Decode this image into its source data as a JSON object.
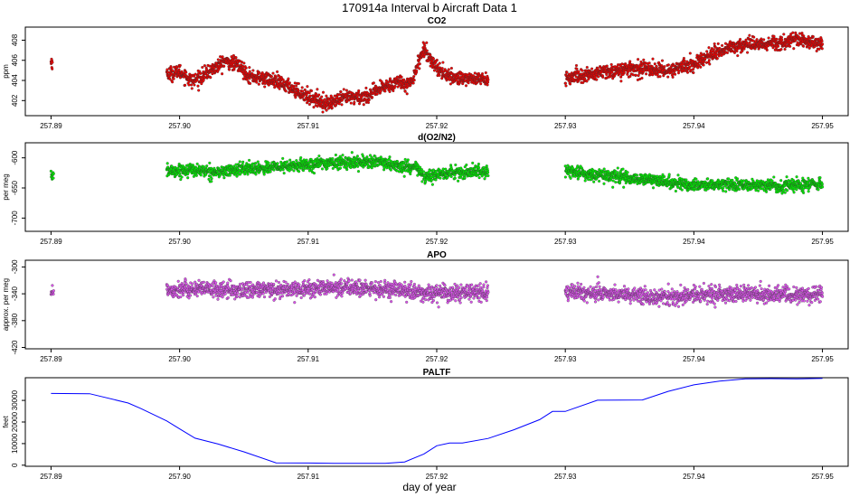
{
  "chart_data": {
    "title": "170914a   Interval b Aircraft Data 1",
    "xlabel": "day of year",
    "x_ticks": [
      "257.89",
      "257.90",
      "257.91",
      "257.92",
      "257.93",
      "257.94",
      "257.95"
    ],
    "xlim": [
      257.888,
      257.952
    ],
    "panels": [
      {
        "type": "scatter",
        "title": "CO2",
        "ylabel": "ppm",
        "ylim": [
          400.5,
          409.3
        ],
        "y_ticks": [
          "402",
          "404",
          "406",
          "408"
        ],
        "color": "#ee0000",
        "segments": [
          {
            "x": [
              257.89,
              257.8901
            ],
            "y": [
              405.8,
              405.9
            ]
          },
          {
            "x": [
              257.899,
              257.9,
              257.901,
              257.902,
              257.9035,
              257.9045,
              257.9055,
              257.907,
              257.9085,
              257.91,
              257.9115,
              257.913,
              257.9145,
              257.916,
              257.917,
              257.918,
              257.9185,
              257.919,
              257.9195,
              257.92,
              257.921,
              257.9225,
              257.924
            ],
            "y": [
              404.6,
              404.9,
              403.9,
              404.6,
              405.9,
              405.6,
              404.4,
              404.1,
              403.4,
              402.4,
              401.7,
              402.3,
              402.4,
              403.4,
              403.9,
              403.6,
              405.6,
              407.1,
              406.2,
              405.3,
              404.3,
              404.2,
              404.1
            ]
          },
          {
            "x": [
              257.93,
              257.932,
              257.934,
              257.936,
              257.938,
              257.94,
              257.942,
              257.944,
              257.946,
              257.948,
              257.95
            ],
            "y": [
              404.2,
              404.6,
              405.0,
              405.2,
              405.0,
              405.6,
              407.0,
              407.6,
              407.7,
              408.0,
              407.7
            ]
          }
        ],
        "noise": 0.35
      },
      {
        "type": "scatter",
        "title": "d(O2/N2)",
        "ylabel": "per meg",
        "ylim": [
          -722,
          -575
        ],
        "y_ticks": [
          "-600",
          "-650",
          "-700"
        ],
        "color": "#00ee00",
        "segments": [
          {
            "x": [
              257.89,
              257.8902
            ],
            "y": [
              -627,
              -632
            ]
          },
          {
            "x": [
              257.899,
              257.901,
              257.903,
              257.905,
              257.907,
              257.909,
              257.911,
              257.913,
              257.915,
              257.917,
              257.9185,
              257.919,
              257.92,
              257.922,
              257.924
            ],
            "y": [
              -622,
              -620,
              -624,
              -618,
              -616,
              -613,
              -609,
              -607,
              -606,
              -614,
              -617,
              -633,
              -628,
              -624,
              -622
            ]
          },
          {
            "x": [
              257.93,
              257.932,
              257.934,
              257.936,
              257.938,
              257.94,
              257.942,
              257.944,
              257.946,
              257.948,
              257.95
            ],
            "y": [
              -622,
              -628,
              -631,
              -636,
              -640,
              -646,
              -644,
              -645,
              -646,
              -645,
              -644
            ]
          }
        ],
        "noise": 5
      },
      {
        "type": "scatter",
        "title": "APO",
        "ylabel": "approx. per meg",
        "ylim": [
          -422,
          -290
        ],
        "y_ticks": [
          "-300",
          "-340",
          "-380",
          "-420"
        ],
        "color": "#dd55ee",
        "segments": [
          {
            "x": [
              257.89,
              257.8902
            ],
            "y": [
              -334,
              -338
            ]
          },
          {
            "x": [
              257.899,
              257.901,
              257.903,
              257.905,
              257.907,
              257.909,
              257.911,
              257.913,
              257.915,
              257.917,
              257.919,
              257.921,
              257.924
            ],
            "y": [
              -334,
              -333,
              -334,
              -335,
              -334,
              -333,
              -332,
              -330,
              -333,
              -335,
              -339,
              -339,
              -339
            ]
          },
          {
            "x": [
              257.93,
              257.932,
              257.934,
              257.936,
              257.938,
              257.94,
              257.942,
              257.944,
              257.946,
              257.948,
              257.95
            ],
            "y": [
              -336,
              -339,
              -340,
              -343,
              -345,
              -342,
              -341,
              -340,
              -341,
              -342,
              -340
            ]
          }
        ],
        "noise": 6
      },
      {
        "type": "line",
        "title": "PALTF",
        "ylabel": "feet",
        "ylim": [
          -500,
          40500
        ],
        "y_ticks": [
          "0",
          "10000",
          "20000",
          "30000"
        ],
        "color": "#0000ff",
        "x": [
          257.89,
          257.893,
          257.896,
          257.897,
          257.899,
          257.9,
          257.9012,
          257.903,
          257.905,
          257.9075,
          257.91,
          257.912,
          257.914,
          257.916,
          257.9175,
          257.919,
          257.92,
          257.921,
          257.922,
          257.924,
          257.926,
          257.928,
          257.929,
          257.93,
          257.9325,
          257.936,
          257.938,
          257.94,
          257.942,
          257.944,
          257.946,
          257.948,
          257.949,
          257.95
        ],
        "y": [
          33200,
          33100,
          28800,
          26200,
          20500,
          16800,
          12500,
          9800,
          6200,
          1100,
          1000,
          900,
          900,
          900,
          1500,
          5200,
          9000,
          10300,
          10300,
          12400,
          16400,
          21100,
          24900,
          24900,
          30100,
          30200,
          34200,
          37200,
          38900,
          40000,
          40100,
          40000,
          40100,
          40200
        ]
      }
    ]
  }
}
